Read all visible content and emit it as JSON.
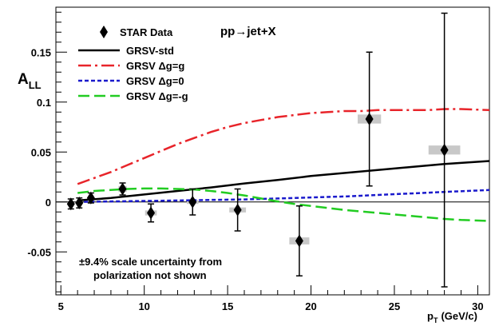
{
  "chart_data": {
    "type": "scatter",
    "ylabel_main": "A",
    "ylabel_sub": "LL",
    "xlabel_main": "p",
    "xlabel_sub": "T",
    "xlabel_unit": "(GeV/c)",
    "annotation": "pp→jet+X",
    "xlim": [
      4.7,
      30.7
    ],
    "ylim": [
      -0.093,
      0.195
    ],
    "grid": false,
    "legend_position": "top-left",
    "x_ticks": [
      {
        "v": 5,
        "label": "5"
      },
      {
        "v": 10,
        "label": "10"
      },
      {
        "v": 15,
        "label": "15"
      },
      {
        "v": 20,
        "label": "20"
      },
      {
        "v": 25,
        "label": "25"
      },
      {
        "v": 30,
        "label": "30"
      }
    ],
    "y_ticks": [
      {
        "v": -0.05,
        "label": "-0.05"
      },
      {
        "v": 0,
        "label": "0"
      },
      {
        "v": 0.05,
        "label": "0.05"
      },
      {
        "v": 0.1,
        "label": "0.1"
      },
      {
        "v": 0.15,
        "label": "0.15"
      }
    ],
    "data_series": {
      "name": "STAR Data",
      "color": "#000000",
      "points": [
        {
          "x": 5.6,
          "y": -0.002,
          "err": 0.005,
          "sys_w": 0.3,
          "sys_h": 0.004
        },
        {
          "x": 6.1,
          "y": -0.001,
          "err": 0.005,
          "sys_w": 0.3,
          "sys_h": 0.004
        },
        {
          "x": 6.8,
          "y": 0.004,
          "err": 0.005,
          "sys_w": 0.3,
          "sys_h": 0.004
        },
        {
          "x": 8.7,
          "y": 0.013,
          "err": 0.006,
          "sys_w": 0.5,
          "sys_h": 0.006
        },
        {
          "x": 10.4,
          "y": -0.011,
          "err": 0.009,
          "sys_w": 0.7,
          "sys_h": 0.005
        },
        {
          "x": 12.9,
          "y": 0.0,
          "err": 0.013,
          "sys_w": 0.7,
          "sys_h": 0.004
        },
        {
          "x": 15.6,
          "y": -0.008,
          "err": 0.021,
          "sys_w": 1.0,
          "sys_h": 0.005
        },
        {
          "x": 19.3,
          "y": -0.039,
          "err": 0.035,
          "sys_w": 1.2,
          "sys_h": 0.007
        },
        {
          "x": 23.5,
          "y": 0.083,
          "err": 0.067,
          "sys_w": 1.4,
          "sys_h": 0.009
        },
        {
          "x": 28.0,
          "y": 0.052,
          "err": 0.137,
          "sys_w": 1.9,
          "sys_h": 0.009
        }
      ]
    },
    "curves": [
      {
        "name": "GRSV-std",
        "color": "#000000",
        "dash": "",
        "width": 2.5,
        "x": [
          6,
          8,
          10,
          12,
          14,
          16,
          18,
          20,
          22,
          24,
          26,
          28,
          30.7
        ],
        "y": [
          0.0015,
          0.004,
          0.0075,
          0.011,
          0.0145,
          0.0185,
          0.022,
          0.026,
          0.029,
          0.032,
          0.035,
          0.038,
          0.041
        ]
      },
      {
        "name": "GRSV Δg=g",
        "color": "#e8242a",
        "dash": "16,5,3,5",
        "width": 2.5,
        "x": [
          6,
          7,
          8,
          9,
          10,
          11,
          12,
          13,
          14,
          15,
          16,
          17,
          18,
          19,
          20,
          21,
          22,
          23,
          24,
          25,
          26,
          27,
          28,
          29,
          30.7
        ],
        "y": [
          0.018,
          0.024,
          0.03,
          0.037,
          0.044,
          0.051,
          0.058,
          0.064,
          0.07,
          0.075,
          0.079,
          0.082,
          0.085,
          0.087,
          0.089,
          0.09,
          0.091,
          0.091,
          0.092,
          0.092,
          0.092,
          0.092,
          0.093,
          0.093,
          0.092
        ]
      },
      {
        "name": "GRSV Δg=0",
        "color": "#1a1acc",
        "dash": "5,3",
        "width": 2.5,
        "x": [
          6,
          8,
          10,
          12,
          14,
          16,
          18,
          20,
          22,
          24,
          26,
          28,
          30.7
        ],
        "y": [
          0.0,
          0.0005,
          0.001,
          0.0015,
          0.002,
          0.0025,
          0.0035,
          0.0045,
          0.0055,
          0.007,
          0.0085,
          0.01,
          0.012
        ]
      },
      {
        "name": "GRSV Δg=-g",
        "color": "#22cc22",
        "dash": "14,6",
        "width": 2.5,
        "x": [
          6,
          7,
          8,
          9,
          10,
          11,
          12,
          13,
          14,
          15,
          16,
          17,
          18,
          19,
          20,
          21,
          22,
          23,
          24,
          25,
          26,
          27,
          28,
          29,
          30.7
        ],
        "y": [
          0.009,
          0.011,
          0.012,
          0.013,
          0.0135,
          0.0135,
          0.013,
          0.0125,
          0.011,
          0.009,
          0.0065,
          0.0035,
          0.0005,
          -0.002,
          -0.004,
          -0.006,
          -0.008,
          -0.0095,
          -0.011,
          -0.0125,
          -0.014,
          -0.0155,
          -0.017,
          -0.018,
          -0.019
        ]
      }
    ],
    "note_lines": [
      "±9.4% scale uncertainty from",
      "polarization not shown"
    ]
  }
}
